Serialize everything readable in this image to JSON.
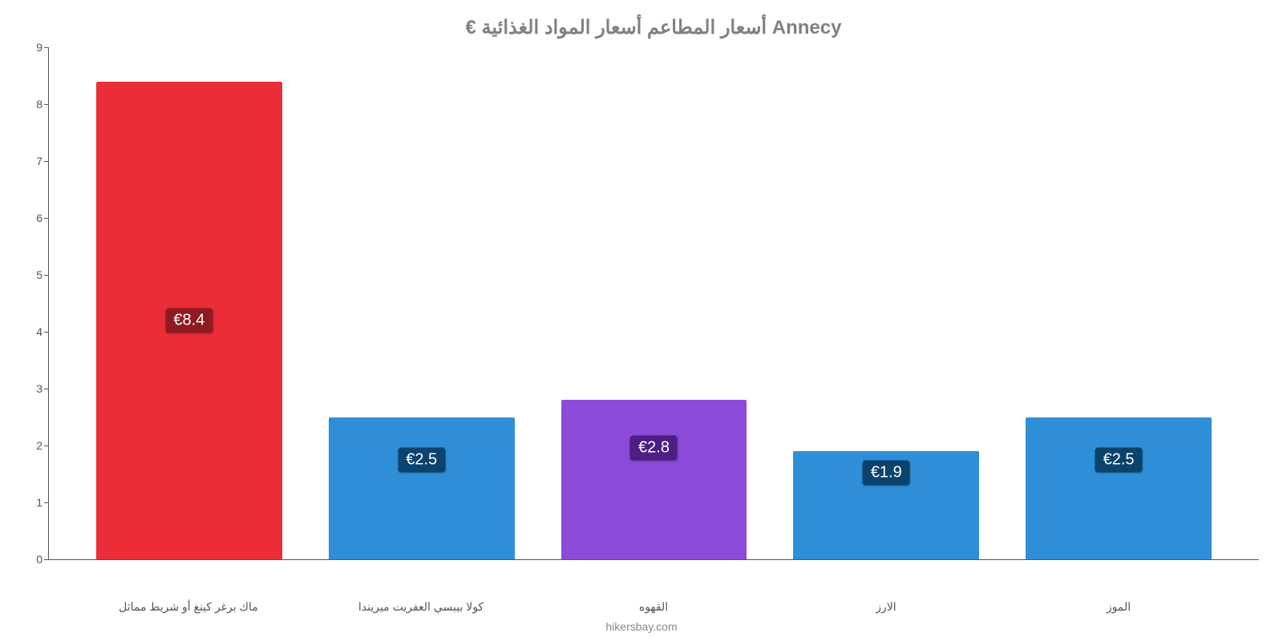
{
  "chart": {
    "type": "bar",
    "title": "€ أسعار المطاعم أسعار المواد الغذائية Annecy",
    "title_color": "#808080",
    "title_fontsize": 24,
    "footer": "hikersbay.com",
    "footer_color": "#888888",
    "background_color": "#ffffff",
    "axis_color": "#555555",
    "currency_prefix": "€",
    "ylim": [
      0,
      9
    ],
    "yticks": [
      0,
      1,
      2,
      3,
      4,
      5,
      6,
      7,
      8,
      9
    ],
    "ytick_fontsize": 14,
    "xlabel_fontsize": 14,
    "bar_width_pct": 80,
    "bar_label_fontsize": 20,
    "items": [
      {
        "category": "ماك برغر كينغ أو شريط مماثل",
        "value": 8.4,
        "display": "€8.4",
        "bar_color": "#eb2d37",
        "label_bg": "#8f1b21",
        "label_top_pct": 50
      },
      {
        "category": "كولا بيبسي العفريت ميريندا",
        "value": 2.5,
        "display": "€2.5",
        "bar_color": "#2f8ed8",
        "label_bg": "#0b436d",
        "label_top_pct": 30
      },
      {
        "category": "القهوه",
        "value": 2.8,
        "display": "€2.8",
        "bar_color": "#8b4ad7",
        "label_bg": "#4d1f85",
        "label_top_pct": 30
      },
      {
        "category": "الارز",
        "value": 1.9,
        "display": "€1.9",
        "bar_color": "#2f8ed8",
        "label_bg": "#0b436d",
        "label_top_pct": 20
      },
      {
        "category": "الموز",
        "value": 2.5,
        "display": "€2.5",
        "bar_color": "#2f8ed8",
        "label_bg": "#0b436d",
        "label_top_pct": 30
      }
    ]
  }
}
